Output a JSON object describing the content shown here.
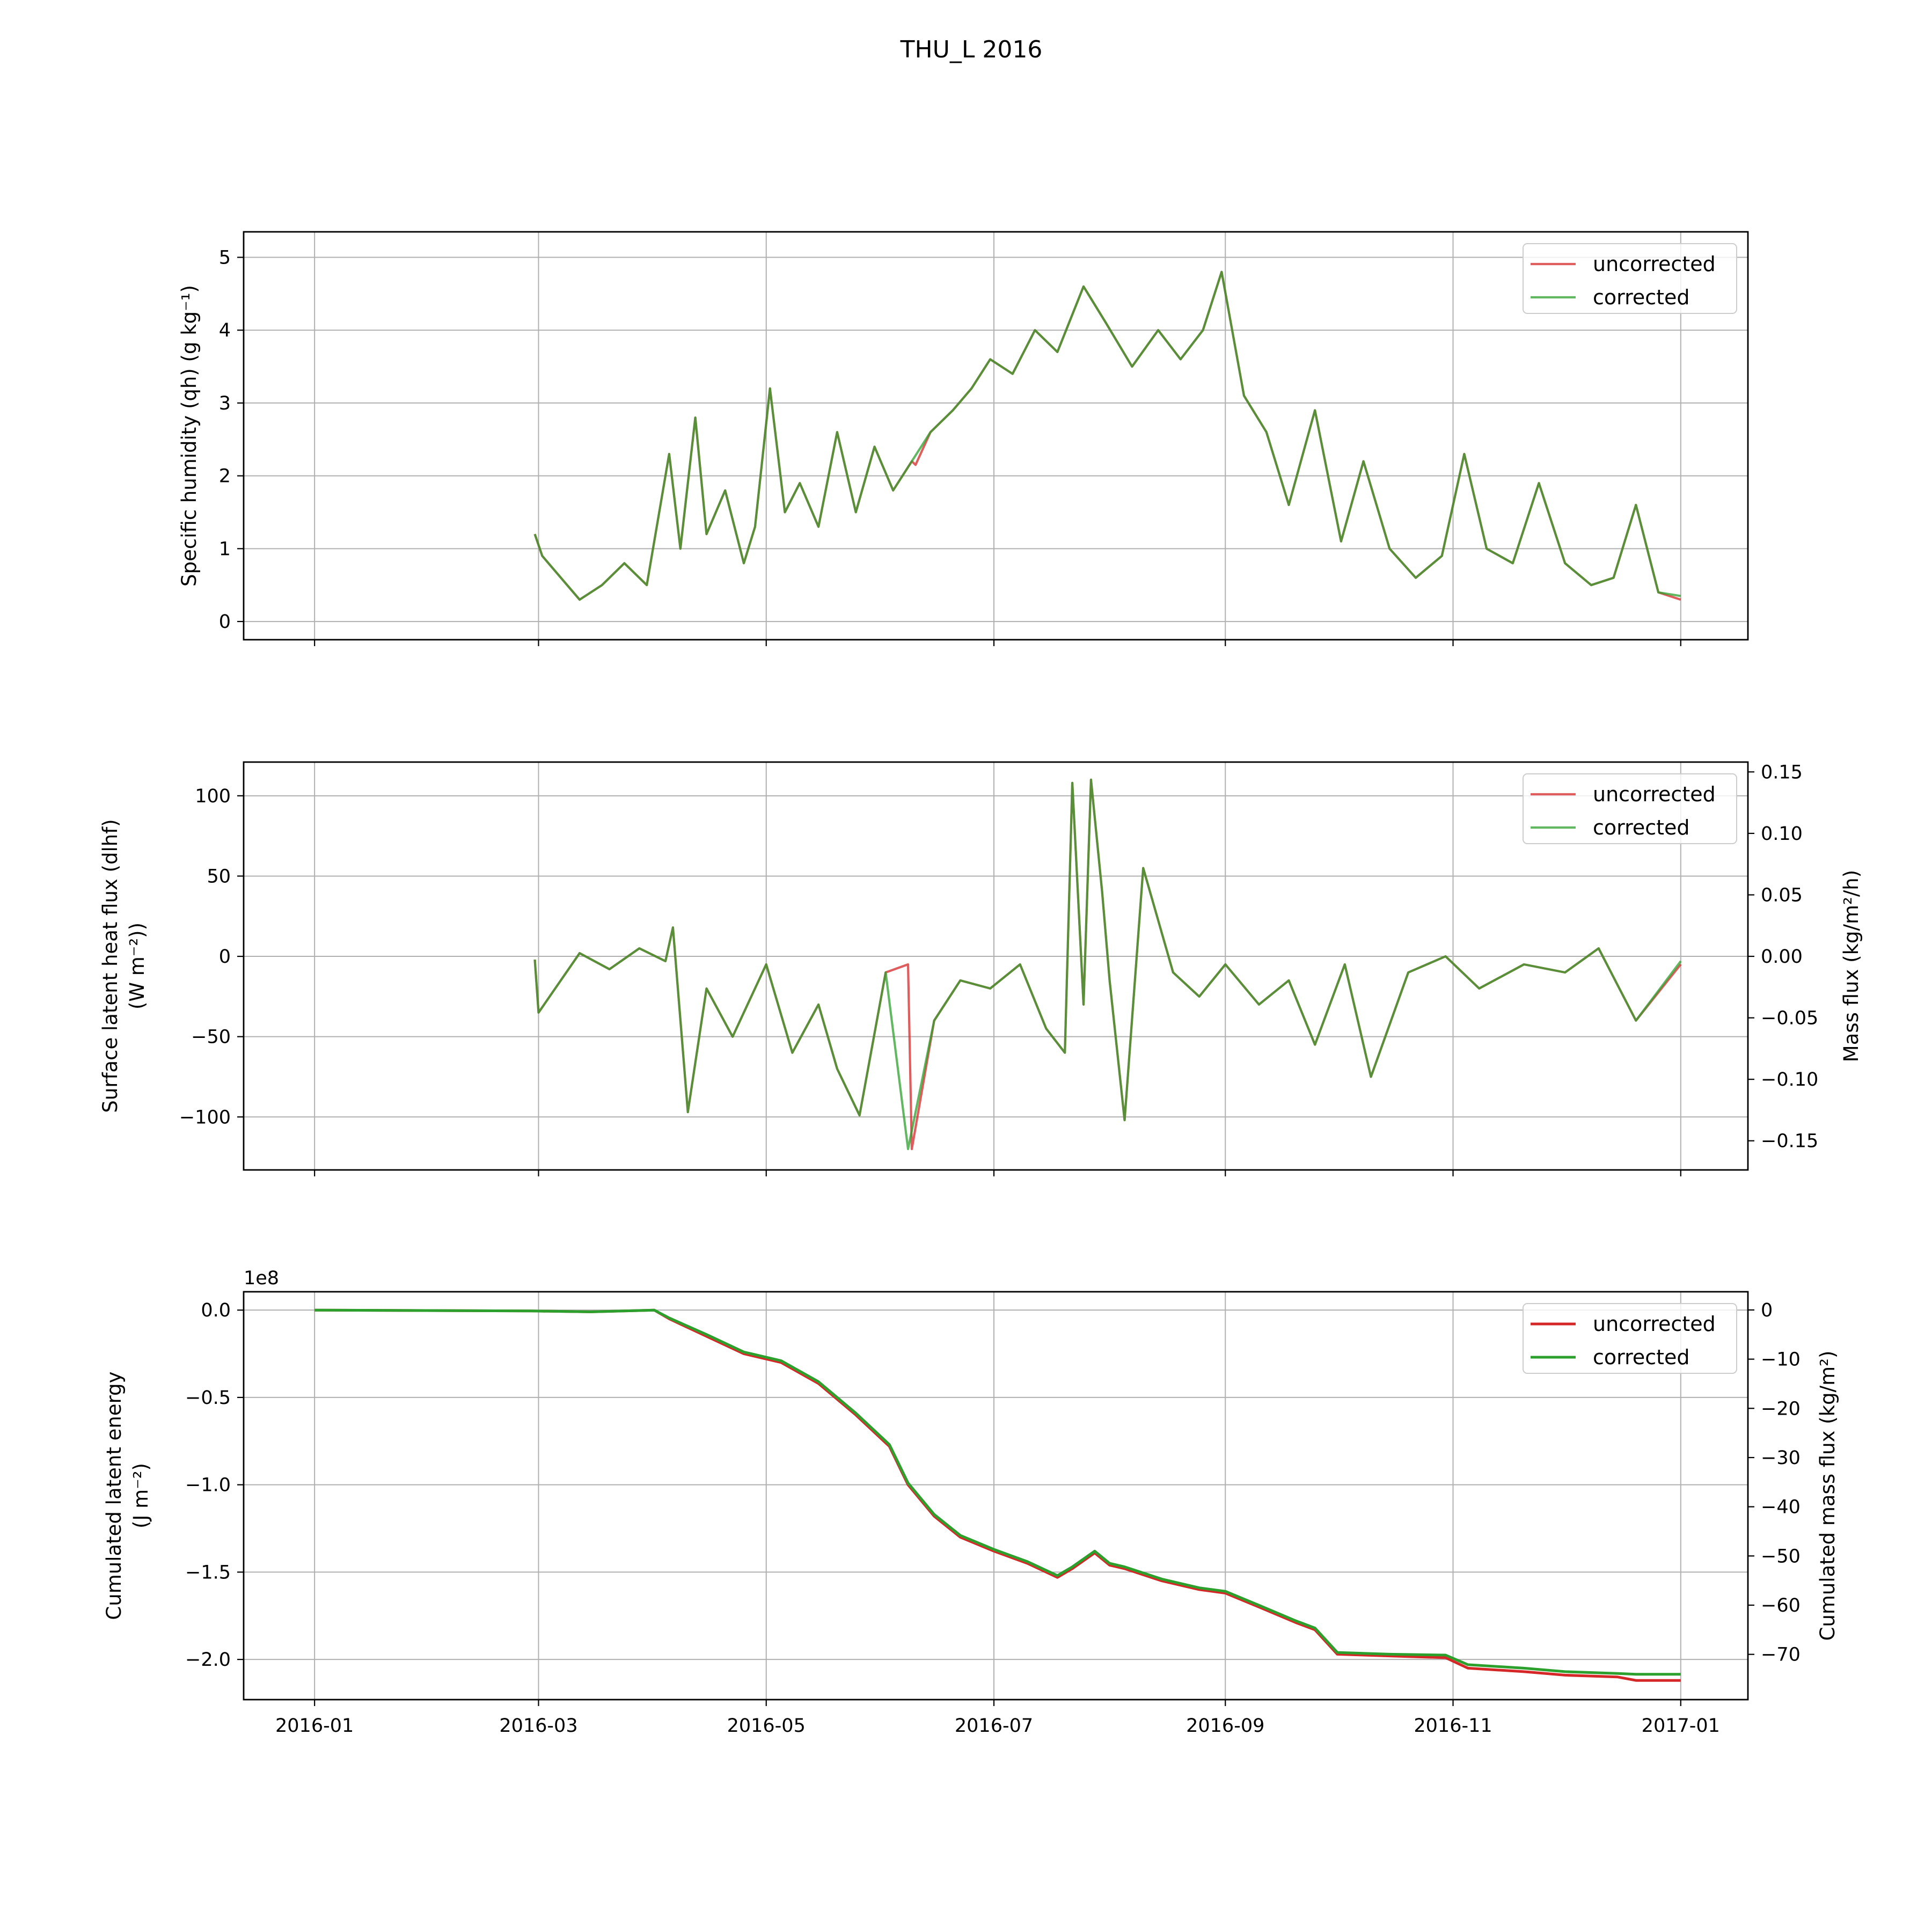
{
  "figure": {
    "title": "THU_L 2016"
  },
  "chart_data": [
    {
      "type": "line",
      "xlabel": "",
      "ylabel": "Specific humidity (qh) (g kg⁻¹)",
      "x_ticks": [
        "2016-01",
        "2016-03",
        "2016-05",
        "2016-07",
        "2016-09",
        "2016-11",
        "2017-01"
      ],
      "xlim": [
        "2015-12-13",
        "2017-01-19"
      ],
      "ylim": [
        -0.25,
        5.35
      ],
      "y_ticks": [
        0,
        1,
        2,
        3,
        4,
        5
      ],
      "y_tick_labels": [
        "0",
        "1",
        "2",
        "3",
        "4",
        "5"
      ],
      "grid": true,
      "legend_position": "top-right",
      "series": [
        {
          "name": "uncorrected",
          "color": "#d62728",
          "x": [
            "2016-02-29",
            "2016-03-02",
            "2016-03-12",
            "2016-03-18",
            "2016-03-24",
            "2016-03-30",
            "2016-04-05",
            "2016-04-08",
            "2016-04-12",
            "2016-04-15",
            "2016-04-20",
            "2016-04-25",
            "2016-04-28",
            "2016-05-02",
            "2016-05-06",
            "2016-05-10",
            "2016-05-15",
            "2016-05-20",
            "2016-05-25",
            "2016-05-30",
            "2016-06-04",
            "2016-06-09",
            "2016-06-10",
            "2016-06-14",
            "2016-06-20",
            "2016-06-25",
            "2016-06-30",
            "2016-07-06",
            "2016-07-12",
            "2016-07-18",
            "2016-07-25",
            "2016-07-31",
            "2016-08-07",
            "2016-08-14",
            "2016-08-20",
            "2016-08-26",
            "2016-08-31",
            "2016-09-06",
            "2016-09-12",
            "2016-09-18",
            "2016-09-25",
            "2016-10-02",
            "2016-10-08",
            "2016-10-15",
            "2016-10-22",
            "2016-10-29",
            "2016-11-04",
            "2016-11-10",
            "2016-11-17",
            "2016-11-24",
            "2016-12-01",
            "2016-12-08",
            "2016-12-14",
            "2016-12-20",
            "2016-12-26",
            "2017-01-01"
          ],
          "y": [
            1.2,
            0.9,
            0.3,
            0.5,
            0.8,
            0.5,
            2.3,
            1.0,
            2.8,
            1.2,
            1.8,
            0.8,
            1.3,
            3.2,
            1.5,
            1.9,
            1.3,
            2.6,
            1.5,
            2.4,
            1.8,
            2.2,
            2.15,
            2.6,
            2.9,
            3.2,
            3.6,
            3.4,
            4.0,
            3.7,
            4.6,
            4.1,
            3.5,
            4.0,
            3.6,
            4.0,
            4.8,
            3.1,
            2.6,
            1.6,
            2.9,
            1.1,
            2.2,
            1.0,
            0.6,
            0.9,
            2.3,
            1.0,
            0.8,
            1.9,
            0.8,
            0.5,
            0.6,
            1.6,
            0.4,
            0.3
          ]
        },
        {
          "name": "corrected",
          "color": "#2ca02c",
          "x": [
            "2016-02-29",
            "2016-03-02",
            "2016-03-12",
            "2016-03-18",
            "2016-03-24",
            "2016-03-30",
            "2016-04-05",
            "2016-04-08",
            "2016-04-12",
            "2016-04-15",
            "2016-04-20",
            "2016-04-25",
            "2016-04-28",
            "2016-05-02",
            "2016-05-06",
            "2016-05-10",
            "2016-05-15",
            "2016-05-20",
            "2016-05-25",
            "2016-05-30",
            "2016-06-04",
            "2016-06-09",
            "2016-06-14",
            "2016-06-20",
            "2016-06-25",
            "2016-06-30",
            "2016-07-06",
            "2016-07-12",
            "2016-07-18",
            "2016-07-25",
            "2016-07-31",
            "2016-08-07",
            "2016-08-14",
            "2016-08-20",
            "2016-08-26",
            "2016-08-31",
            "2016-09-06",
            "2016-09-12",
            "2016-09-18",
            "2016-09-25",
            "2016-10-02",
            "2016-10-08",
            "2016-10-15",
            "2016-10-22",
            "2016-10-29",
            "2016-11-04",
            "2016-11-10",
            "2016-11-17",
            "2016-11-24",
            "2016-12-01",
            "2016-12-08",
            "2016-12-14",
            "2016-12-20",
            "2016-12-26",
            "2017-01-01"
          ],
          "y": [
            1.2,
            0.9,
            0.3,
            0.5,
            0.8,
            0.5,
            2.3,
            1.0,
            2.8,
            1.2,
            1.8,
            0.8,
            1.3,
            3.2,
            1.5,
            1.9,
            1.3,
            2.6,
            1.5,
            2.4,
            1.8,
            2.2,
            2.6,
            2.9,
            3.2,
            3.6,
            3.4,
            4.0,
            3.7,
            4.6,
            4.1,
            3.5,
            4.0,
            3.6,
            4.0,
            4.8,
            3.1,
            2.6,
            1.6,
            2.9,
            1.1,
            2.2,
            1.0,
            0.6,
            0.9,
            2.3,
            1.0,
            0.8,
            1.9,
            0.8,
            0.5,
            0.6,
            1.6,
            0.4,
            0.35
          ]
        }
      ]
    },
    {
      "type": "line",
      "xlabel": "",
      "ylabel": "Surface latent heat flux (dlhf)",
      "ylabel_line2": "(W m⁻²))",
      "y2label": "Mass flux (kg/m²/h)",
      "x_ticks": [
        "2016-01",
        "2016-03",
        "2016-05",
        "2016-07",
        "2016-09",
        "2016-11",
        "2017-01"
      ],
      "xlim": [
        "2015-12-13",
        "2017-01-19"
      ],
      "ylim": [
        -133,
        121
      ],
      "y_ticks": [
        -100,
        -50,
        0,
        50,
        100
      ],
      "y_tick_labels": [
        "−100",
        "−50",
        "0",
        "50",
        "100"
      ],
      "y2lim": [
        -0.1737,
        0.158
      ],
      "y2_ticks": [
        -0.15,
        -0.1,
        -0.05,
        0.0,
        0.05,
        0.1,
        0.15
      ],
      "y2_tick_labels": [
        "−0.15",
        "−0.10",
        "−0.05",
        "0.00",
        "0.05",
        "0.10",
        "0.15"
      ],
      "grid": true,
      "legend_position": "top-right",
      "series": [
        {
          "name": "uncorrected",
          "color": "#d62728",
          "x": [
            "2016-02-29",
            "2016-03-01",
            "2016-03-12",
            "2016-03-20",
            "2016-03-28",
            "2016-04-04",
            "2016-04-06",
            "2016-04-10",
            "2016-04-15",
            "2016-04-22",
            "2016-05-01",
            "2016-05-08",
            "2016-05-15",
            "2016-05-20",
            "2016-05-26",
            "2016-06-02",
            "2016-06-08",
            "2016-06-09",
            "2016-06-15",
            "2016-06-22",
            "2016-06-30",
            "2016-07-08",
            "2016-07-15",
            "2016-07-20",
            "2016-07-22",
            "2016-07-25",
            "2016-07-27",
            "2016-07-30",
            "2016-08-01",
            "2016-08-05",
            "2016-08-10",
            "2016-08-18",
            "2016-08-25",
            "2016-09-01",
            "2016-09-10",
            "2016-09-18",
            "2016-09-25",
            "2016-10-03",
            "2016-10-10",
            "2016-10-20",
            "2016-10-30",
            "2016-11-08",
            "2016-11-20",
            "2016-12-01",
            "2016-12-10",
            "2016-12-20",
            "2017-01-01"
          ],
          "y": [
            -2,
            -35,
            2,
            -8,
            5,
            -3,
            18,
            -97,
            -20,
            -50,
            -5,
            -60,
            -30,
            -70,
            -99,
            -10,
            -5,
            -120,
            -40,
            -15,
            -20,
            -5,
            -45,
            -60,
            108,
            -30,
            110,
            40,
            -15,
            -102,
            55,
            -10,
            -25,
            -5,
            -30,
            -15,
            -55,
            -5,
            -75,
            -10,
            0,
            -20,
            -5,
            -10,
            5,
            -40,
            -5
          ]
        },
        {
          "name": "corrected",
          "color": "#2ca02c",
          "x": [
            "2016-02-29",
            "2016-03-01",
            "2016-03-12",
            "2016-03-20",
            "2016-03-28",
            "2016-04-04",
            "2016-04-06",
            "2016-04-10",
            "2016-04-15",
            "2016-04-22",
            "2016-05-01",
            "2016-05-08",
            "2016-05-15",
            "2016-05-20",
            "2016-05-26",
            "2016-06-02",
            "2016-06-08",
            "2016-06-15",
            "2016-06-22",
            "2016-06-30",
            "2016-07-08",
            "2016-07-15",
            "2016-07-20",
            "2016-07-22",
            "2016-07-25",
            "2016-07-27",
            "2016-07-30",
            "2016-08-01",
            "2016-08-05",
            "2016-08-10",
            "2016-08-18",
            "2016-08-25",
            "2016-09-01",
            "2016-09-10",
            "2016-09-18",
            "2016-09-25",
            "2016-10-03",
            "2016-10-10",
            "2016-10-20",
            "2016-10-30",
            "2016-11-08",
            "2016-11-20",
            "2016-12-01",
            "2016-12-10",
            "2016-12-20",
            "2017-01-01"
          ],
          "y": [
            -2,
            -35,
            2,
            -8,
            5,
            -3,
            18,
            -97,
            -20,
            -50,
            -5,
            -60,
            -30,
            -70,
            -99,
            -10,
            -120,
            -40,
            -15,
            -20,
            -5,
            -45,
            -60,
            108,
            -30,
            110,
            40,
            -15,
            -102,
            55,
            -10,
            -25,
            -5,
            -30,
            -15,
            -55,
            -5,
            -75,
            -10,
            0,
            -20,
            -5,
            -10,
            5,
            -40,
            -3
          ]
        }
      ]
    },
    {
      "type": "line",
      "xlabel": "",
      "ylabel": "Cumulated latent energy",
      "ylabel_line2": "(J m⁻²)",
      "y2label": "Cumulated mass flux (kg/m²)",
      "offset_text": "1e8",
      "x_ticks": [
        "2016-01",
        "2016-03",
        "2016-05",
        "2016-07",
        "2016-09",
        "2016-11",
        "2017-01"
      ],
      "xlim": [
        "2015-12-13",
        "2017-01-19"
      ],
      "ylim": [
        -2.23,
        0.105
      ],
      "y_ticks": [
        -2.0,
        -1.5,
        -1.0,
        -0.5,
        0.0
      ],
      "y_tick_labels": [
        "−2.0",
        "−1.5",
        "−1.0",
        "−0.5",
        "0.0"
      ],
      "y2lim": [
        -79.2,
        3.7
      ],
      "y2_ticks": [
        -70,
        -60,
        -50,
        -40,
        -30,
        -20,
        -10,
        0
      ],
      "y2_tick_labels": [
        "−70",
        "−60",
        "−50",
        "−40",
        "−30",
        "−20",
        "−10",
        "0"
      ],
      "grid": true,
      "legend_position": "top-right",
      "series": [
        {
          "name": "uncorrected",
          "color": "#d62728",
          "x": [
            "2016-01-01",
            "2016-02-28",
            "2016-03-15",
            "2016-04-01",
            "2016-04-05",
            "2016-04-15",
            "2016-04-25",
            "2016-05-05",
            "2016-05-15",
            "2016-05-25",
            "2016-06-03",
            "2016-06-08",
            "2016-06-15",
            "2016-06-22",
            "2016-07-01",
            "2016-07-10",
            "2016-07-18",
            "2016-07-22",
            "2016-07-28",
            "2016-08-01",
            "2016-08-05",
            "2016-08-15",
            "2016-08-25",
            "2016-09-01",
            "2016-09-10",
            "2016-09-20",
            "2016-09-25",
            "2016-10-01",
            "2016-10-15",
            "2016-10-30",
            "2016-11-05",
            "2016-11-20",
            "2016-12-01",
            "2016-12-15",
            "2016-12-20",
            "2017-01-01"
          ],
          "y": [
            0.0,
            -0.005,
            -0.01,
            0.0,
            -0.05,
            -0.15,
            -0.25,
            -0.3,
            -0.42,
            -0.6,
            -0.78,
            -1.0,
            -1.18,
            -1.3,
            -1.38,
            -1.45,
            -1.53,
            -1.48,
            -1.39,
            -1.46,
            -1.48,
            -1.55,
            -1.6,
            -1.62,
            -1.7,
            -1.79,
            -1.83,
            -1.97,
            -1.98,
            -1.99,
            -2.05,
            -2.07,
            -2.09,
            -2.1,
            -2.12,
            -2.12
          ]
        },
        {
          "name": "corrected",
          "color": "#2ca02c",
          "x": [
            "2016-01-01",
            "2016-02-28",
            "2016-03-15",
            "2016-04-01",
            "2016-04-05",
            "2016-04-15",
            "2016-04-25",
            "2016-05-05",
            "2016-05-15",
            "2016-05-25",
            "2016-06-03",
            "2016-06-08",
            "2016-06-15",
            "2016-06-22",
            "2016-07-01",
            "2016-07-10",
            "2016-07-18",
            "2016-07-22",
            "2016-07-28",
            "2016-08-01",
            "2016-08-05",
            "2016-08-15",
            "2016-08-25",
            "2016-09-01",
            "2016-09-10",
            "2016-09-20",
            "2016-09-25",
            "2016-10-01",
            "2016-10-15",
            "2016-10-30",
            "2016-11-05",
            "2016-11-20",
            "2016-12-01",
            "2016-12-15",
            "2016-12-20",
            "2017-01-01"
          ],
          "y": [
            0.0,
            -0.005,
            -0.01,
            0.0,
            -0.045,
            -0.14,
            -0.24,
            -0.29,
            -0.41,
            -0.59,
            -0.77,
            -0.99,
            -1.17,
            -1.29,
            -1.37,
            -1.44,
            -1.52,
            -1.47,
            -1.38,
            -1.45,
            -1.47,
            -1.54,
            -1.59,
            -1.61,
            -1.69,
            -1.78,
            -1.82,
            -1.96,
            -1.97,
            -1.975,
            -2.03,
            -2.05,
            -2.07,
            -2.08,
            -2.085,
            -2.085
          ]
        }
      ]
    }
  ]
}
